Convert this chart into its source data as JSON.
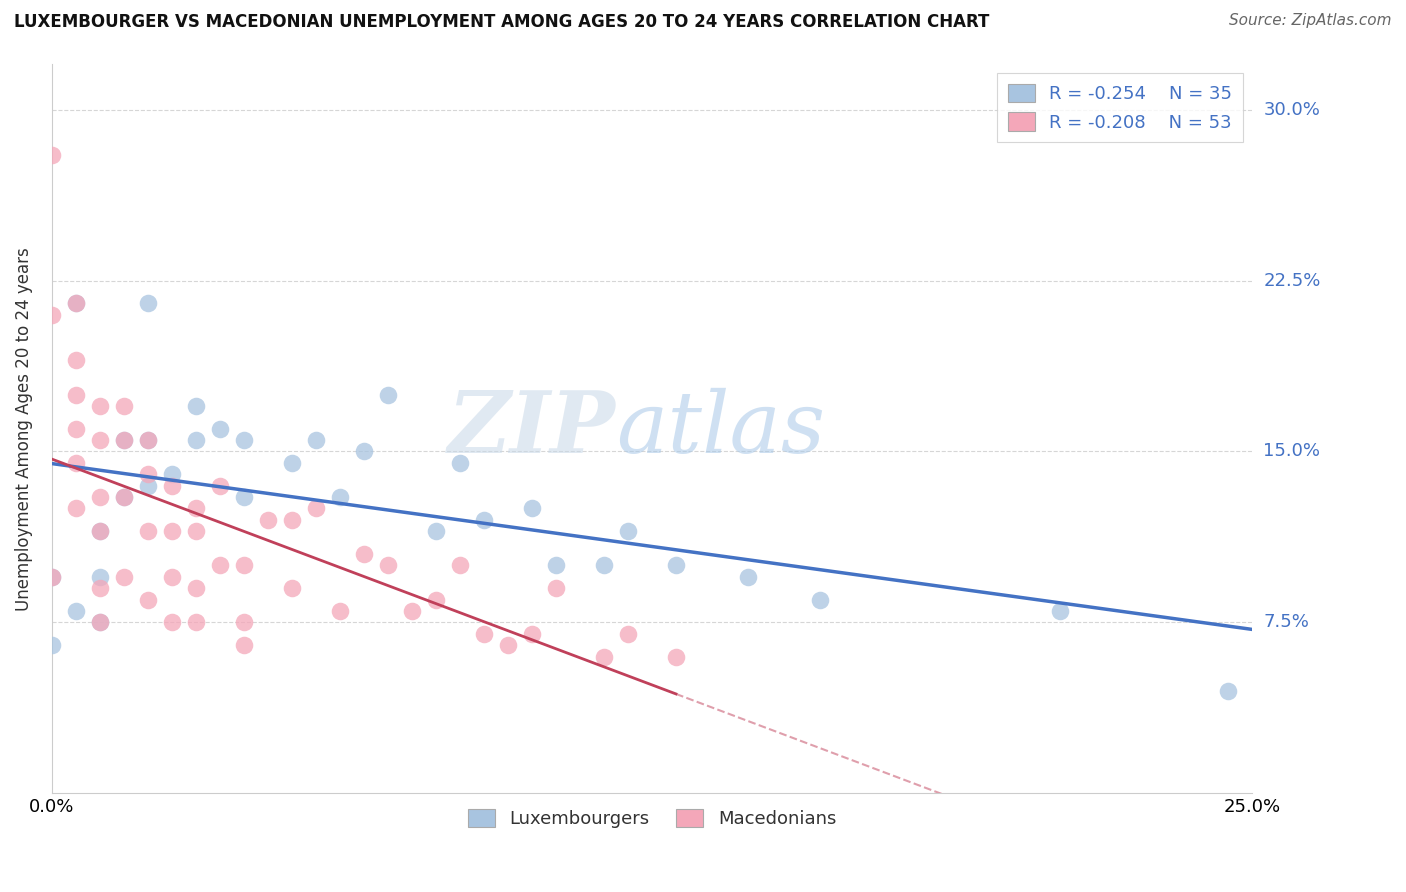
{
  "title": "LUXEMBOURGER VS MACEDONIAN UNEMPLOYMENT AMONG AGES 20 TO 24 YEARS CORRELATION CHART",
  "source": "Source: ZipAtlas.com",
  "ylabel": "Unemployment Among Ages 20 to 24 years",
  "xlim": [
    0.0,
    0.25
  ],
  "ylim": [
    0.0,
    0.32
  ],
  "yticks": [
    0.0,
    0.075,
    0.15,
    0.225,
    0.3
  ],
  "ytick_labels": [
    "",
    "7.5%",
    "15.0%",
    "22.5%",
    "30.0%"
  ],
  "legend_r1": "-0.254",
  "legend_n1": "35",
  "legend_r2": "-0.208",
  "legend_n2": "53",
  "color_blue": "#a8c4e0",
  "color_pink": "#f4a7b9",
  "line_blue": "#4472c4",
  "line_pink": "#c0405a",
  "watermark_zip": "ZIP",
  "watermark_atlas": "atlas",
  "background_color": "#ffffff",
  "grid_color": "#cccccc",
  "luxembourger_x": [
    0.005,
    0.02,
    0.0,
    0.0,
    0.01,
    0.01,
    0.005,
    0.01,
    0.015,
    0.015,
    0.02,
    0.02,
    0.025,
    0.03,
    0.03,
    0.035,
    0.04,
    0.04,
    0.05,
    0.055,
    0.06,
    0.065,
    0.07,
    0.08,
    0.085,
    0.09,
    0.1,
    0.105,
    0.115,
    0.12,
    0.13,
    0.145,
    0.16,
    0.21,
    0.245
  ],
  "luxembourger_y": [
    0.215,
    0.215,
    0.095,
    0.065,
    0.115,
    0.095,
    0.08,
    0.075,
    0.155,
    0.13,
    0.155,
    0.135,
    0.14,
    0.17,
    0.155,
    0.16,
    0.155,
    0.13,
    0.145,
    0.155,
    0.13,
    0.15,
    0.175,
    0.115,
    0.145,
    0.12,
    0.125,
    0.1,
    0.1,
    0.115,
    0.1,
    0.095,
    0.085,
    0.08,
    0.045
  ],
  "macedonian_x": [
    0.0,
    0.0,
    0.0,
    0.005,
    0.005,
    0.005,
    0.005,
    0.005,
    0.005,
    0.01,
    0.01,
    0.01,
    0.01,
    0.01,
    0.01,
    0.015,
    0.015,
    0.015,
    0.015,
    0.02,
    0.02,
    0.02,
    0.02,
    0.025,
    0.025,
    0.025,
    0.025,
    0.03,
    0.03,
    0.03,
    0.03,
    0.035,
    0.035,
    0.04,
    0.04,
    0.04,
    0.045,
    0.05,
    0.05,
    0.055,
    0.06,
    0.065,
    0.07,
    0.075,
    0.08,
    0.085,
    0.09,
    0.095,
    0.1,
    0.105,
    0.115,
    0.12,
    0.13
  ],
  "macedonian_y": [
    0.28,
    0.21,
    0.095,
    0.215,
    0.19,
    0.175,
    0.16,
    0.145,
    0.125,
    0.17,
    0.155,
    0.13,
    0.115,
    0.09,
    0.075,
    0.17,
    0.155,
    0.13,
    0.095,
    0.155,
    0.14,
    0.115,
    0.085,
    0.135,
    0.115,
    0.095,
    0.075,
    0.125,
    0.115,
    0.09,
    0.075,
    0.135,
    0.1,
    0.1,
    0.075,
    0.065,
    0.12,
    0.12,
    0.09,
    0.125,
    0.08,
    0.105,
    0.1,
    0.08,
    0.085,
    0.1,
    0.07,
    0.065,
    0.07,
    0.09,
    0.06,
    0.07,
    0.06
  ]
}
